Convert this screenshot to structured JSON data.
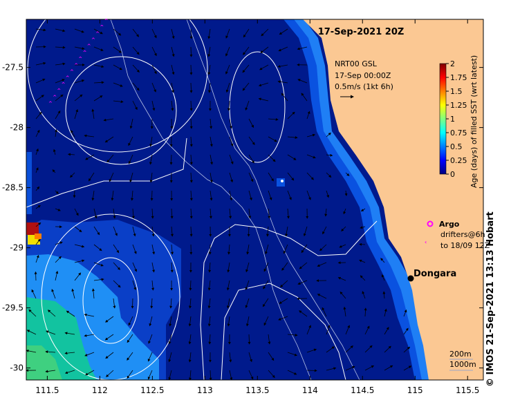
{
  "map": {
    "title": "17-Sep-2021 20Z",
    "region": {
      "lon_min": 111.3,
      "lon_max": 115.65,
      "lat_min": -30.1,
      "lat_max": -27.1
    },
    "x_ticks": [
      "111.5",
      "112",
      "112.5",
      "113",
      "113.5",
      "114",
      "114.5",
      "115",
      "115.5"
    ],
    "x_tick_values": [
      111.5,
      112,
      112.5,
      113,
      113.5,
      114,
      114.5,
      115,
      115.5
    ],
    "y_ticks": [
      "-27.5",
      "-28",
      "-28.5",
      "-29",
      "-29.5",
      "-30"
    ],
    "y_tick_values": [
      -27.5,
      -28,
      -28.5,
      -29,
      -29.5,
      -30
    ],
    "colors": {
      "land": "#fbc893",
      "deep_blue": "#001a8c",
      "mid_blue": "#0a3fc7",
      "coast_blue": "#0f6cf0"
    }
  },
  "current_legend": {
    "line1": "NRT00 GSL",
    "line2": "17-Sep 00:00Z",
    "line3": "0.5m/s (1kt 6h)"
  },
  "colorbar": {
    "label": "Age (days) of filled SST (wrt latest)",
    "ticks": [
      "0",
      "0.25",
      "0.5",
      "0.75",
      "1",
      "1.25",
      "1.5",
      "1.75",
      "2"
    ],
    "stops": [
      "#00007f",
      "#0000ff",
      "#0080ff",
      "#00ffff",
      "#80ff80",
      "#ffff00",
      "#ff8000",
      "#ff0000",
      "#7f0000"
    ]
  },
  "argo": {
    "label": "Argo",
    "drifter_line1": "drifters@6h",
    "drifter_line2": "to 18/09 12Z",
    "marker_color": "#ff00ff"
  },
  "place": {
    "name": "Dongara",
    "lon": 114.93,
    "lat": -29.26
  },
  "scale": {
    "label1": "200m",
    "label2": "1000m"
  },
  "credit": "©  IMOS 21-Sep-2021 13:13 Hobart"
}
